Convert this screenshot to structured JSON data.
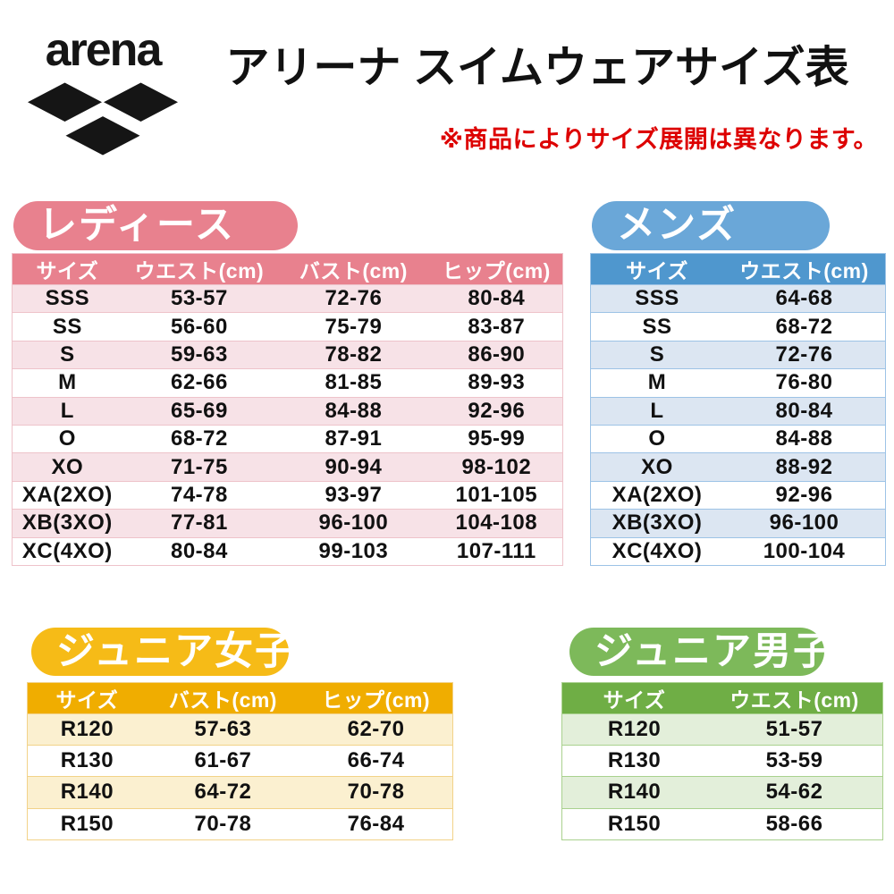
{
  "header": {
    "logo_text": "arena",
    "title": "アリーナ スイムウェアサイズ表",
    "note": "※商品によりサイズ展開は異なります。",
    "note_color": "#dd0000",
    "title_color": "#111111"
  },
  "tables": [
    {
      "id": "ladies",
      "label": "レディース",
      "columns": [
        "サイズ",
        "ウエスト(cm)",
        "バスト(cm)",
        "ヒップ(cm)"
      ],
      "rows": [
        [
          "SSS",
          "53-57",
          "72-76",
          "80-84"
        ],
        [
          "SS",
          "56-60",
          "75-79",
          "83-87"
        ],
        [
          "S",
          "59-63",
          "78-82",
          "86-90"
        ],
        [
          "M",
          "62-66",
          "81-85",
          "89-93"
        ],
        [
          "L",
          "65-69",
          "84-88",
          "92-96"
        ],
        [
          "O",
          "68-72",
          "87-91",
          "95-99"
        ],
        [
          "XO",
          "71-75",
          "90-94",
          "98-102"
        ],
        [
          "XA(2XO)",
          "74-78",
          "93-97",
          "101-105"
        ],
        [
          "XB(3XO)",
          "77-81",
          "96-100",
          "104-108"
        ],
        [
          "XC(4XO)",
          "80-84",
          "99-103",
          "107-111"
        ]
      ],
      "colors": {
        "pill": "#e8818e",
        "head": "#e8818e",
        "alt": "#f7e2e7",
        "border": "#eec3ca"
      }
    },
    {
      "id": "mens",
      "label": "メンズ",
      "columns": [
        "サイズ",
        "ウエスト(cm)"
      ],
      "rows": [
        [
          "SSS",
          "64-68"
        ],
        [
          "SS",
          "68-72"
        ],
        [
          "S",
          "72-76"
        ],
        [
          "M",
          "76-80"
        ],
        [
          "L",
          "80-84"
        ],
        [
          "O",
          "84-88"
        ],
        [
          "XO",
          "88-92"
        ],
        [
          "XA(2XO)",
          "92-96"
        ],
        [
          "XB(3XO)",
          "96-100"
        ],
        [
          "XC(4XO)",
          "100-104"
        ]
      ],
      "colors": {
        "pill": "#6aa7d8",
        "head": "#4f97ce",
        "alt": "#dce6f2",
        "border": "#9dc3e6"
      }
    },
    {
      "id": "junior-girls",
      "label": "ジュニア女子",
      "columns": [
        "サイズ",
        "バスト(cm)",
        "ヒップ(cm)"
      ],
      "rows": [
        [
          "R120",
          "57-63",
          "62-70"
        ],
        [
          "R130",
          "61-67",
          "66-74"
        ],
        [
          "R140",
          "64-72",
          "70-78"
        ],
        [
          "R150",
          "70-78",
          "76-84"
        ]
      ],
      "colors": {
        "pill": "#f6bb17",
        "head": "#f0ad00",
        "alt": "#fbf0d0",
        "border": "#f2d289"
      }
    },
    {
      "id": "junior-boys",
      "label": "ジュニア男子",
      "columns": [
        "サイズ",
        "ウエスト(cm)"
      ],
      "rows": [
        [
          "R120",
          "51-57"
        ],
        [
          "R130",
          "53-59"
        ],
        [
          "R140",
          "54-62"
        ],
        [
          "R150",
          "58-66"
        ]
      ],
      "colors": {
        "pill": "#7db95a",
        "head": "#6fae45",
        "alt": "#e3efda",
        "border": "#a9d18e"
      }
    }
  ]
}
